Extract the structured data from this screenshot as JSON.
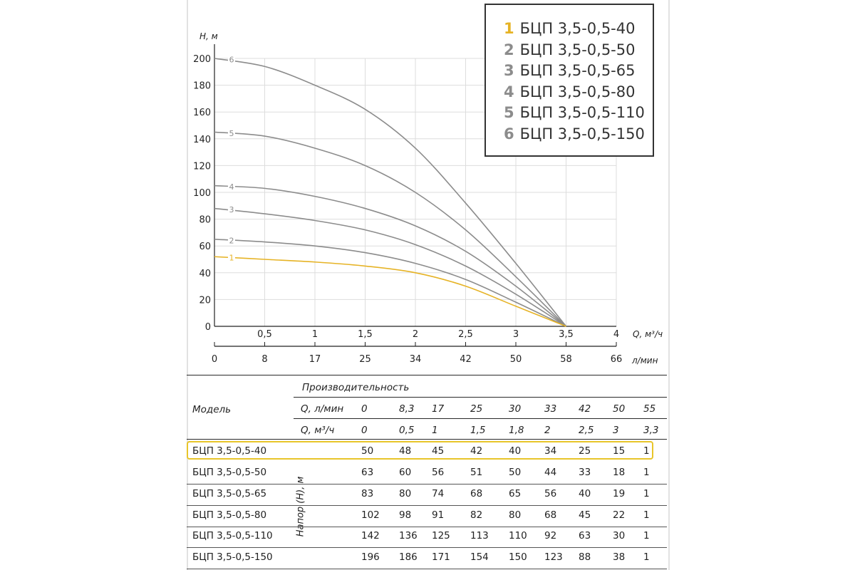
{
  "chart_data": {
    "type": "line",
    "ylabel": "H, м",
    "xlabel_m3h": "Q, м³/ч",
    "xlabel_lmin": "л/мин",
    "ylim": [
      0,
      200
    ],
    "xlim_m3h": [
      0,
      4
    ],
    "yticks": [
      "0",
      "20",
      "40",
      "60",
      "80",
      "100",
      "120",
      "140",
      "160",
      "180",
      "200"
    ],
    "xticks_m3h": [
      "0,5",
      "1",
      "1,5",
      "2",
      "2,5",
      "3",
      "3,5",
      "4"
    ],
    "xticks_lmin": [
      "0",
      "8",
      "17",
      "25",
      "34",
      "42",
      "50",
      "58",
      "66"
    ],
    "grid": true,
    "series": [
      {
        "id": "1",
        "name": "БЦП 3,5-0,5-40",
        "color": "#e6b325",
        "points": [
          [
            0,
            52
          ],
          [
            0.5,
            50
          ],
          [
            1,
            48
          ],
          [
            1.5,
            45
          ],
          [
            2,
            40
          ],
          [
            2.5,
            30
          ],
          [
            3,
            15
          ],
          [
            3.5,
            0
          ]
        ]
      },
      {
        "id": "2",
        "name": "БЦП 3,5-0,5-50",
        "color": "#8c8c8c",
        "points": [
          [
            0,
            65
          ],
          [
            0.5,
            63
          ],
          [
            1,
            60
          ],
          [
            1.5,
            55
          ],
          [
            2,
            47
          ],
          [
            2.5,
            35
          ],
          [
            3,
            18
          ],
          [
            3.5,
            0
          ]
        ]
      },
      {
        "id": "3",
        "name": "БЦП 3,5-0,5-65",
        "color": "#8c8c8c",
        "points": [
          [
            0,
            88
          ],
          [
            0.5,
            84
          ],
          [
            1,
            79
          ],
          [
            1.5,
            72
          ],
          [
            2,
            61
          ],
          [
            2.5,
            45
          ],
          [
            3,
            24
          ],
          [
            3.5,
            0
          ]
        ]
      },
      {
        "id": "4",
        "name": "БЦП 3,5-0,5-80",
        "color": "#8c8c8c",
        "points": [
          [
            0,
            105
          ],
          [
            0.5,
            103
          ],
          [
            1,
            97
          ],
          [
            1.5,
            88
          ],
          [
            2,
            75
          ],
          [
            2.5,
            56
          ],
          [
            3,
            30
          ],
          [
            3.5,
            0
          ]
        ]
      },
      {
        "id": "5",
        "name": "БЦП 3,5-0,5-110",
        "color": "#8c8c8c",
        "points": [
          [
            0,
            145
          ],
          [
            0.5,
            142
          ],
          [
            1,
            133
          ],
          [
            1.5,
            120
          ],
          [
            2,
            100
          ],
          [
            2.5,
            72
          ],
          [
            3,
            37
          ],
          [
            3.5,
            0
          ]
        ]
      },
      {
        "id": "6",
        "name": "БЦП 3,5-0,5-150",
        "color": "#8c8c8c",
        "points": [
          [
            0,
            200
          ],
          [
            0.5,
            194
          ],
          [
            1,
            180
          ],
          [
            1.5,
            162
          ],
          [
            2,
            133
          ],
          [
            2.5,
            92
          ],
          [
            3,
            47
          ],
          [
            3.5,
            0
          ]
        ]
      }
    ]
  },
  "legend": {
    "items": [
      {
        "num": "1",
        "label": "БЦП 3,5-0,5-40",
        "color": "#e6b325"
      },
      {
        "num": "2",
        "label": "БЦП 3,5-0,5-50",
        "color": "#8c8c8c"
      },
      {
        "num": "3",
        "label": "БЦП 3,5-0,5-65",
        "color": "#8c8c8c"
      },
      {
        "num": "4",
        "label": "БЦП 3,5-0,5-80",
        "color": "#8c8c8c"
      },
      {
        "num": "5",
        "label": "БЦП 3,5-0,5-110",
        "color": "#8c8c8c"
      },
      {
        "num": "6",
        "label": "БЦП 3,5-0,5-150",
        "color": "#8c8c8c"
      }
    ]
  },
  "table": {
    "header_perf": "Производительность",
    "header_model": "Модель",
    "q_lmin_label": "Q, л/мин",
    "q_m3h_label": "Q, м³/ч",
    "head_label": "Напор (H), м",
    "q_lmin": [
      "0",
      "8,3",
      "17",
      "25",
      "30",
      "33",
      "42",
      "50",
      "55"
    ],
    "q_m3h": [
      "0",
      "0,5",
      "1",
      "1,5",
      "1,8",
      "2",
      "2,5",
      "3",
      "3,3"
    ],
    "rows": [
      {
        "model": "БЦП 3,5-0,5-40",
        "values": [
          "50",
          "48",
          "45",
          "42",
          "40",
          "34",
          "25",
          "15",
          "1"
        ]
      },
      {
        "model": "БЦП 3,5-0,5-50",
        "values": [
          "63",
          "60",
          "56",
          "51",
          "50",
          "44",
          "33",
          "18",
          "1"
        ]
      },
      {
        "model": "БЦП 3,5-0,5-65",
        "values": [
          "83",
          "80",
          "74",
          "68",
          "65",
          "56",
          "40",
          "19",
          "1"
        ]
      },
      {
        "model": "БЦП 3,5-0,5-80",
        "values": [
          "102",
          "98",
          "91",
          "82",
          "80",
          "68",
          "45",
          "22",
          "1"
        ]
      },
      {
        "model": "БЦП 3,5-0,5-110",
        "values": [
          "142",
          "136",
          "125",
          "113",
          "110",
          "92",
          "63",
          "30",
          "1"
        ]
      },
      {
        "model": "БЦП 3,5-0,5-150",
        "values": [
          "196",
          "186",
          "171",
          "154",
          "150",
          "123",
          "88",
          "38",
          "1"
        ]
      }
    ]
  },
  "colors": {
    "accent": "#e6b325",
    "curve": "#8c8c8c",
    "grid": "#dddddd",
    "axis": "#222222"
  }
}
